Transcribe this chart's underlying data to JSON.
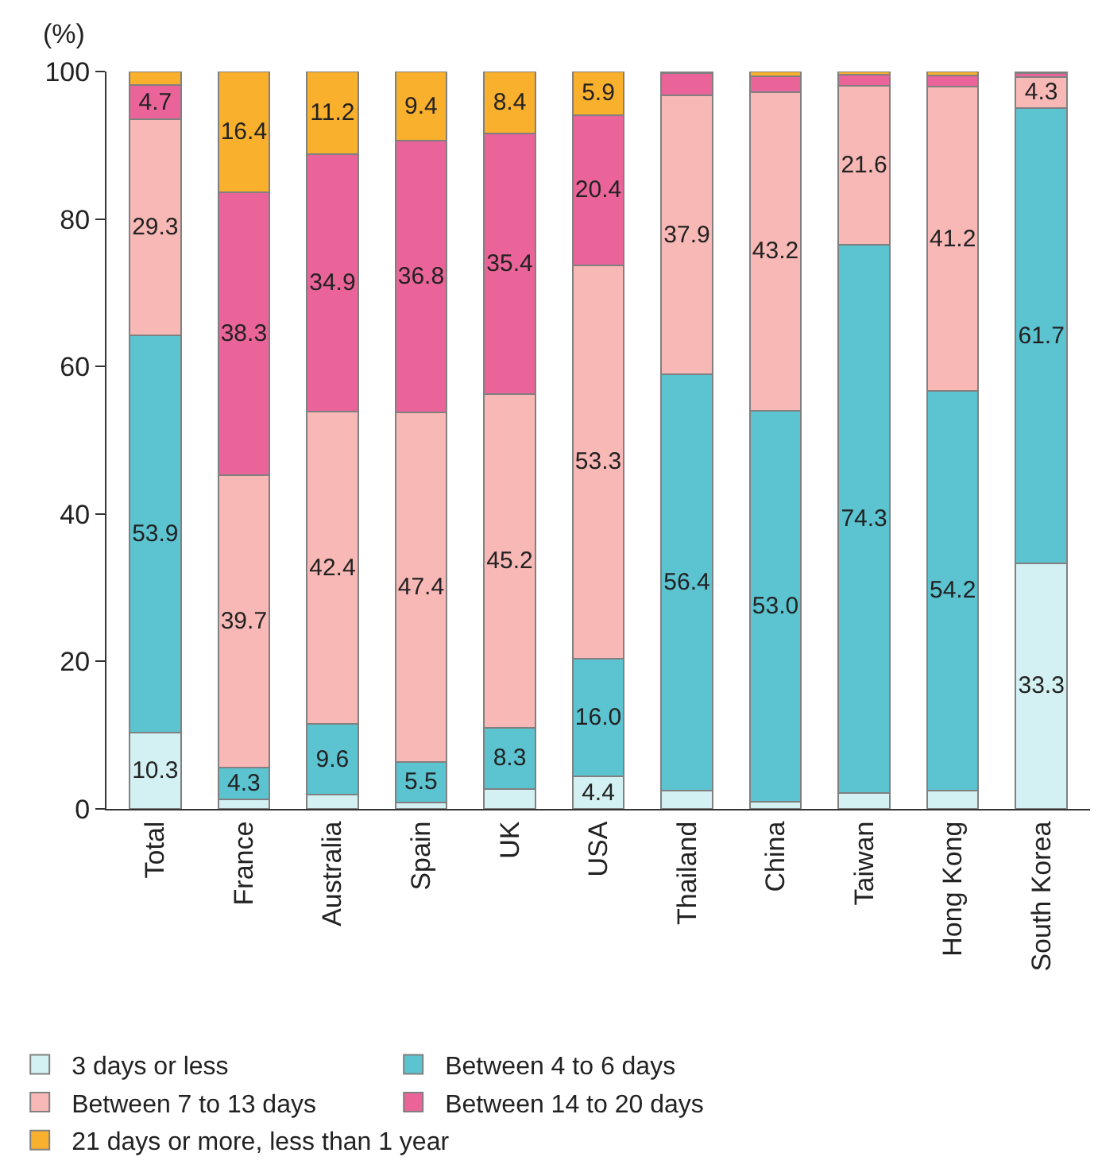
{
  "chart_data": {
    "type": "bar",
    "stacked": true,
    "ylabel": "(%)",
    "categories": [
      "Total",
      "France",
      "Australia",
      "Spain",
      "UK",
      "USA",
      "Thailand",
      "China",
      "Taiwan",
      "Hong Kong",
      "South Korea"
    ],
    "series": [
      {
        "name": "3 days or less",
        "color": "#d3f0f2",
        "values": [
          10.3,
          1.3,
          1.9,
          0.9,
          2.7,
          4.4,
          2.5,
          1.0,
          2.2,
          2.5,
          33.3
        ],
        "value_labels": [
          "10.3",
          null,
          null,
          null,
          null,
          "4.4",
          null,
          null,
          null,
          null,
          "33.3"
        ]
      },
      {
        "name": "Between 4 to 6 days",
        "color": "#5cc3d0",
        "values": [
          53.9,
          4.3,
          9.6,
          5.5,
          8.3,
          16.0,
          56.4,
          53.0,
          74.3,
          54.2,
          61.7
        ],
        "value_labels": [
          "53.9",
          "4.3",
          "9.6",
          "5.5",
          "8.3",
          "16.0",
          "56.4",
          "53.0",
          "74.3",
          "54.2",
          "61.7"
        ]
      },
      {
        "name": "Between 7 to 13 days",
        "color": "#f8b8b6",
        "values": [
          29.3,
          39.7,
          42.4,
          47.4,
          45.2,
          53.3,
          37.9,
          43.2,
          21.6,
          41.2,
          4.3
        ],
        "value_labels": [
          "29.3",
          "39.7",
          "42.4",
          "47.4",
          "45.2",
          "53.3",
          "37.9",
          "43.2",
          "21.6",
          "41.2",
          "4.3"
        ]
      },
      {
        "name": "Between 14 to 20 days",
        "color": "#ea6499",
        "values": [
          4.7,
          38.3,
          34.9,
          36.8,
          35.4,
          20.4,
          3.0,
          2.2,
          1.5,
          1.6,
          0.5
        ],
        "value_labels": [
          "4.7",
          "38.3",
          "34.9",
          "36.8",
          "35.4",
          "20.4",
          null,
          null,
          null,
          null,
          null
        ]
      },
      {
        "name": "21 days or more, less than 1 year",
        "color": "#f9b02c",
        "values": [
          1.8,
          16.4,
          11.2,
          9.4,
          8.4,
          5.9,
          0.2,
          0.6,
          0.4,
          0.5,
          0.2
        ],
        "value_labels": [
          null,
          "16.4",
          "11.2",
          "9.4",
          "8.4",
          "5.9",
          null,
          null,
          null,
          null,
          null
        ]
      }
    ],
    "ylim": [
      0,
      100
    ],
    "yticks": [
      0,
      20,
      40,
      60,
      80,
      100
    ],
    "legend": "bottom"
  }
}
